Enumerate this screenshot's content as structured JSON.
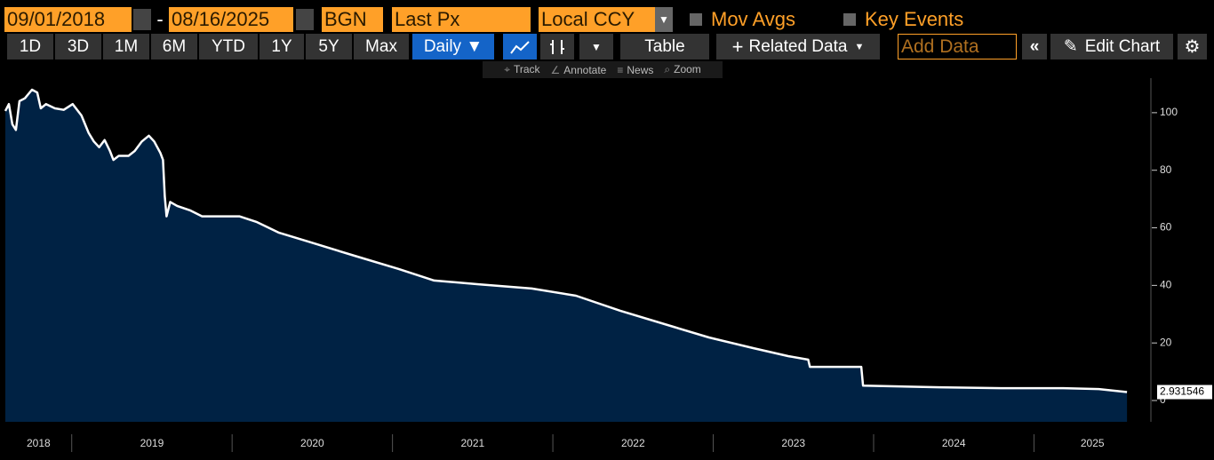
{
  "toolbar": {
    "start_date": "09/01/2018",
    "separator": "-",
    "end_date": "08/16/2025",
    "source": "BGN",
    "field": "Last Px",
    "currency": "Local CCY",
    "mov_avgs": "Mov Avgs",
    "key_events": "Key Events",
    "periods": [
      "1D",
      "3D",
      "1M",
      "6M",
      "YTD",
      "1Y",
      "5Y",
      "Max"
    ],
    "frequency": "Daily ▼",
    "table": "Table",
    "related": "Related Data",
    "add_data": "Add Data",
    "edit_chart": "Edit Chart",
    "tools": [
      "Track",
      "Annotate",
      "News",
      "Zoom"
    ]
  },
  "chart_data": {
    "type": "area",
    "color": "#ffffff",
    "fill": "#002244",
    "x": [
      2018.586,
      2018.608,
      2018.63,
      2018.652,
      2018.674,
      2018.708,
      2018.752,
      2018.785,
      2018.807,
      2018.84,
      2018.895,
      2018.95,
      2019.006,
      2019.061,
      2019.105,
      2019.138,
      2019.171,
      2019.205,
      2019.238,
      2019.26,
      2019.293,
      2019.354,
      2019.393,
      2019.437,
      2019.481,
      2019.514,
      2019.553,
      2019.569,
      2019.58,
      2019.591,
      2019.614,
      2019.658,
      2019.741,
      2019.813,
      2020.045,
      2020.155,
      2020.293,
      2020.487,
      2020.763,
      2021.039,
      2021.26,
      2021.536,
      2021.868,
      2022.144,
      2022.42,
      2022.752,
      2022.973,
      2023.249,
      2023.47,
      2023.592,
      2023.603,
      2023.923,
      2023.934,
      2024.409,
      2024.796,
      2025.183,
      2025.404,
      2025.58
    ],
    "values": [
      100.6,
      103,
      96,
      94,
      104,
      105,
      108,
      107,
      101.5,
      103,
      101.5,
      101,
      103,
      99,
      93,
      90,
      88,
      90.5,
      86.7,
      83.6,
      85,
      85,
      86.7,
      90,
      92,
      90,
      86,
      83.6,
      71,
      64,
      69,
      67.6,
      66,
      64,
      64,
      62,
      58.3,
      55,
      50.3,
      45.7,
      41.7,
      40.4,
      38.9,
      36.4,
      31.2,
      25.6,
      21.9,
      18.2,
      15.4,
      14.2,
      11.7,
      11.7,
      5.2,
      4.6,
      4.3,
      4.3,
      4.0,
      2.931546
    ],
    "xlim": [
      2018.586,
      2025.729
    ],
    "xticks": [
      2018,
      2019,
      2020,
      2021,
      2022,
      2023,
      2024,
      2025
    ],
    "ylim": [
      -7.4,
      112
    ],
    "yticks": [
      0,
      20,
      40,
      60,
      80,
      100
    ]
  }
}
